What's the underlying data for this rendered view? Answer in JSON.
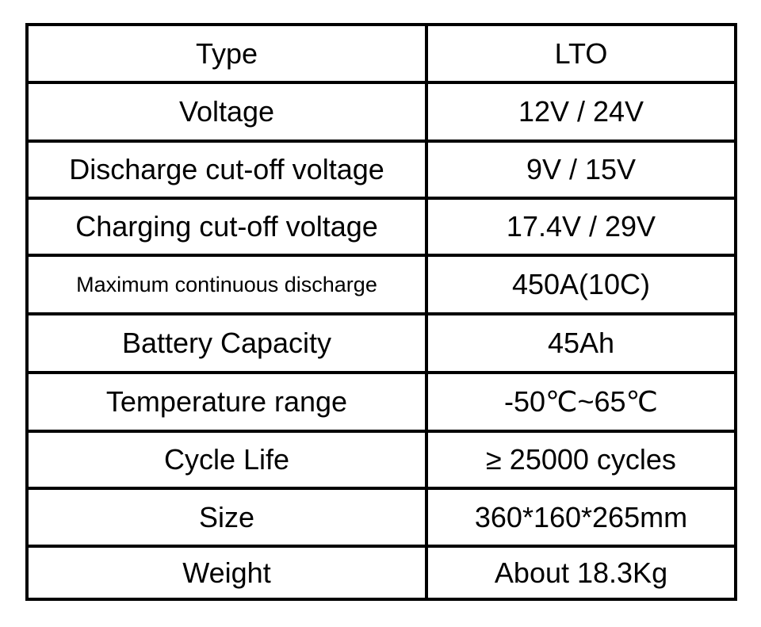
{
  "table": {
    "rows": [
      [
        "Type",
        "LTO"
      ],
      [
        "Voltage",
        "12V / 24V"
      ],
      [
        "Discharge cut-off voltage",
        "9V / 15V"
      ],
      [
        "Charging cut-off voltage",
        "17.4V / 29V"
      ],
      [
        "Maximum continuous discharge",
        "450A(10C)"
      ],
      [
        "Battery Capacity",
        "45Ah"
      ],
      [
        "Temperature range",
        "-50℃~65℃"
      ],
      [
        "Cycle Life",
        "≥ 25000 cycles"
      ],
      [
        "Size",
        "360*160*265mm"
      ],
      [
        "Weight",
        "About 18.3Kg"
      ]
    ]
  }
}
